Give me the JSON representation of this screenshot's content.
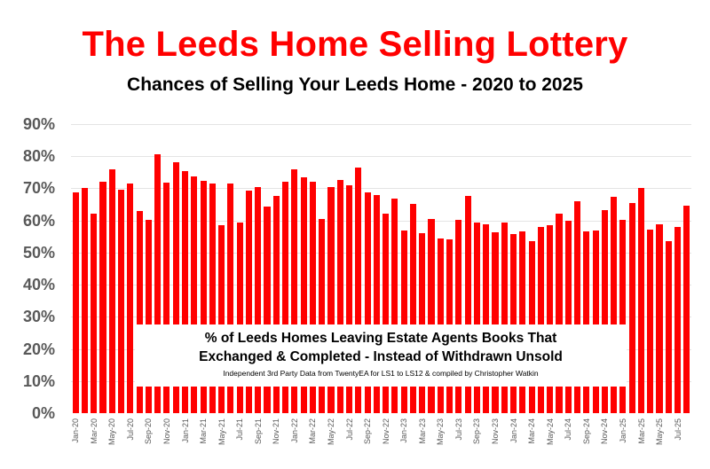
{
  "header": {
    "title": "The Leeds Home Selling Lottery",
    "subtitle": "Chances of Selling Your Leeds Home - 2020 to 2025"
  },
  "annotation": {
    "line1": "% of Leeds Homes Leaving Estate Agents Books That",
    "line2": "Exchanged & Completed - Instead of Withdrawn Unsold",
    "line3": "Independent 3rd Party Data from TwentyEA for LS1 to LS12 & compiled by Christopher Watkin"
  },
  "colors": {
    "bar": "#ff0000",
    "title": "#ff0000",
    "axis_text": "#595959",
    "gridline": "#e4e4e4"
  },
  "chart_data": {
    "type": "bar",
    "title": "The Leeds Home Selling Lottery",
    "subtitle": "Chances of Selling Your Leeds Home - 2020 to 2025",
    "xlabel": "",
    "ylabel": "",
    "ylim": [
      0,
      90
    ],
    "yticks": [
      "0%",
      "10%",
      "20%",
      "30%",
      "40%",
      "50%",
      "60%",
      "70%",
      "80%",
      "90%"
    ],
    "grid": true,
    "legend": null,
    "annotation": "% of Leeds Homes Leaving Estate Agents Books That Exchanged & Completed - Instead of Withdrawn Unsold",
    "source_note": "Independent 3rd Party Data from TwentyEA for LS1 to LS12 & compiled by Christopher Watkin",
    "x_tick_labels": [
      "Jan-20",
      "Mar-20",
      "May-20",
      "Jul-20",
      "Sep-20",
      "Nov-20",
      "Jan-21",
      "Mar-21",
      "May-21",
      "Jul-21",
      "Sep-21",
      "Nov-21",
      "Jan-22",
      "Mar-22",
      "May-22",
      "Jul-22",
      "Sep-22",
      "Nov-22",
      "Jan-23",
      "Mar-23",
      "May-23",
      "Jul-23",
      "Sep-23",
      "Nov-23",
      "Jan-24",
      "Mar-24",
      "May-24",
      "Jul-24",
      "Sep-24",
      "Nov-24",
      "Jan-25",
      "Mar-25",
      "May-25",
      "Jul-25"
    ],
    "categories": [
      "Jan-20",
      "Feb-20",
      "Mar-20",
      "Apr-20",
      "May-20",
      "Jun-20",
      "Jul-20",
      "Aug-20",
      "Sep-20",
      "Oct-20",
      "Nov-20",
      "Dec-20",
      "Jan-21",
      "Feb-21",
      "Mar-21",
      "Apr-21",
      "May-21",
      "Jun-21",
      "Jul-21",
      "Aug-21",
      "Sep-21",
      "Oct-21",
      "Nov-21",
      "Dec-21",
      "Jan-22",
      "Feb-22",
      "Mar-22",
      "Apr-22",
      "May-22",
      "Jun-22",
      "Jul-22",
      "Aug-22",
      "Sep-22",
      "Oct-22",
      "Nov-22",
      "Dec-22",
      "Jan-23",
      "Feb-23",
      "Mar-23",
      "Apr-23",
      "May-23",
      "Jun-23",
      "Jul-23",
      "Aug-23",
      "Sep-23",
      "Oct-23",
      "Nov-23",
      "Dec-23",
      "Jan-24",
      "Feb-24",
      "Mar-24",
      "Apr-24",
      "May-24",
      "Jun-24",
      "Jul-24",
      "Aug-24",
      "Sep-24",
      "Oct-24",
      "Nov-24",
      "Dec-24",
      "Jan-25",
      "Feb-25",
      "Mar-25",
      "Apr-25",
      "May-25",
      "Jun-25",
      "Jul-25",
      "Aug-25"
    ],
    "values": [
      68.8,
      70.2,
      62.1,
      72.2,
      76.0,
      69.5,
      71.5,
      62.9,
      60.1,
      80.7,
      71.7,
      78.2,
      75.3,
      73.6,
      72.4,
      71.5,
      58.5,
      71.4,
      59.5,
      69.3,
      70.4,
      64.4,
      67.6,
      72.2,
      75.8,
      73.4,
      72.2,
      60.5,
      70.3,
      72.5,
      70.9,
      76.4,
      68.8,
      67.9,
      62.2,
      66.8,
      57.0,
      65.1,
      56.0,
      60.4,
      54.5,
      54.1,
      60.1,
      67.7,
      59.5,
      58.9,
      56.4,
      59.5,
      55.7,
      56.5,
      53.6,
      58.0,
      58.5,
      62.1,
      60.0,
      66.1,
      56.5,
      56.9,
      63.3,
      67.5,
      60.3,
      65.5,
      70.2,
      57.1,
      58.8,
      53.6,
      58.0,
      64.5
    ]
  }
}
